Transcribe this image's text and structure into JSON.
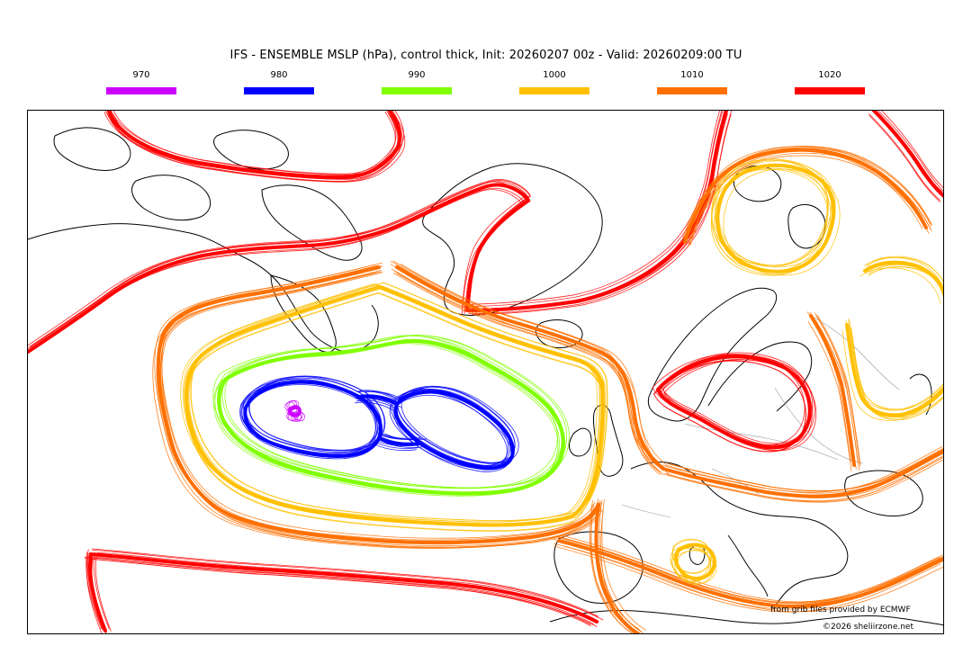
{
  "title": "IFS - ENSEMBLE MSLP (hPa), control thick, Init: 20260207 00z - Valid: 20260209:00 TU",
  "legend": [
    {
      "label": "970",
      "color": "#cc00ff"
    },
    {
      "label": "980",
      "color": "#0000ff"
    },
    {
      "label": "990",
      "color": "#80ff00"
    },
    {
      "label": "1000",
      "color": "#ffc000"
    },
    {
      "label": "1010",
      "color": "#ff7000"
    },
    {
      "label": "1020",
      "color": "#ff0000"
    }
  ],
  "credits": {
    "source": "from grib files provided by ECMWF",
    "copyright": "©2026 sheliirzone.net"
  },
  "map": {
    "region": "North Atlantic and Europe",
    "coastline_color": "#000000",
    "border_color": "#999999"
  }
}
